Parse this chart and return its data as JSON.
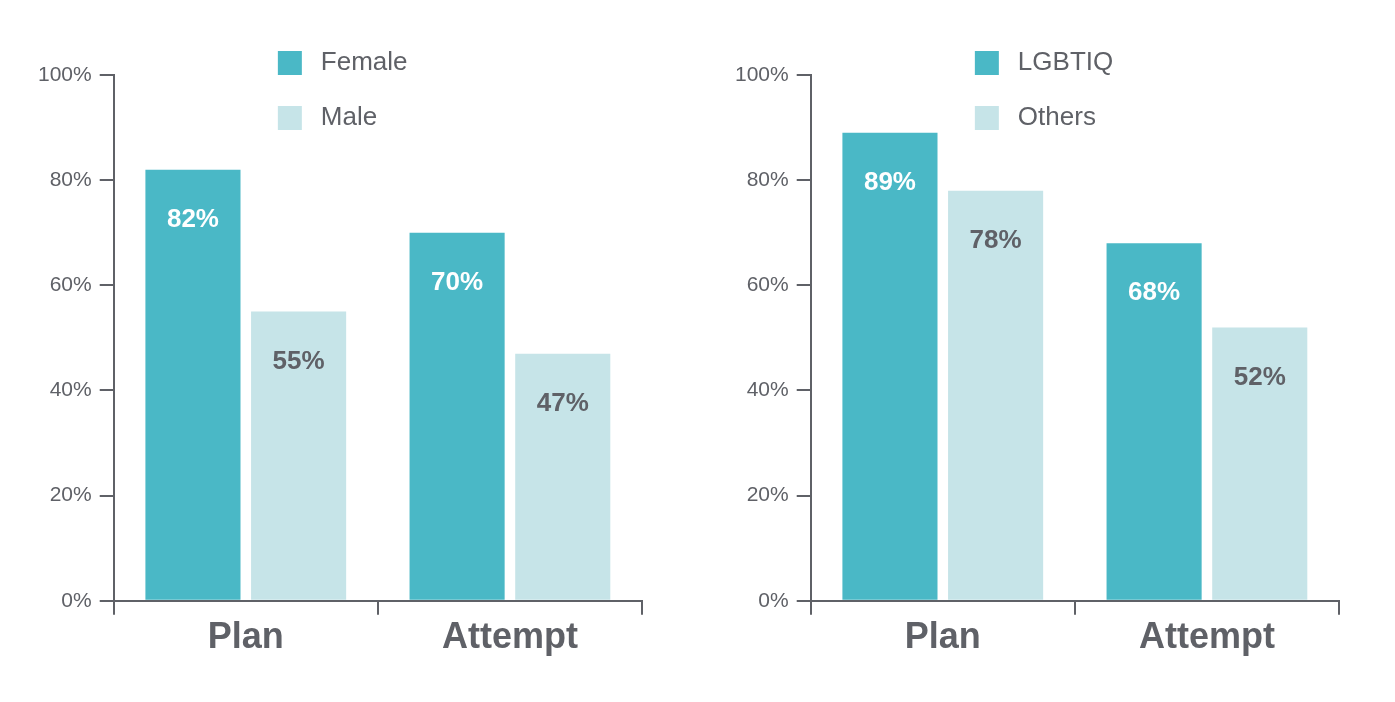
{
  "chart_data": [
    {
      "type": "bar",
      "categories": [
        "Plan",
        "Attempt"
      ],
      "series": [
        {
          "name": "Female",
          "color": "#4ab8c6",
          "values": [
            82,
            70
          ]
        },
        {
          "name": "Male",
          "color": "#c6e4e8",
          "values": [
            55,
            47
          ]
        }
      ],
      "ylim": [
        0,
        100
      ],
      "yticks": [
        {
          "value": 0,
          "label": "0%"
        },
        {
          "value": 20,
          "label": "20%"
        },
        {
          "value": 40,
          "label": "40%"
        },
        {
          "value": 60,
          "label": "60%"
        },
        {
          "value": 80,
          "label": "80%"
        },
        {
          "value": 100,
          "label": "100%"
        }
      ],
      "value_labels": [
        [
          "82%",
          "70%"
        ],
        [
          "55%",
          "47%"
        ]
      ],
      "legend": "top",
      "grid": false
    },
    {
      "type": "bar",
      "categories": [
        "Plan",
        "Attempt"
      ],
      "series": [
        {
          "name": "LGBTIQ",
          "color": "#4ab8c6",
          "values": [
            89,
            68
          ]
        },
        {
          "name": "Others",
          "color": "#c6e4e8",
          "values": [
            78,
            52
          ]
        }
      ],
      "ylim": [
        0,
        100
      ],
      "yticks": [
        {
          "value": 0,
          "label": "0%"
        },
        {
          "value": 20,
          "label": "20%"
        },
        {
          "value": 40,
          "label": "40%"
        },
        {
          "value": 60,
          "label": "60%"
        },
        {
          "value": 80,
          "label": "80%"
        },
        {
          "value": 100,
          "label": "100%"
        }
      ],
      "value_labels": [
        [
          "89%",
          "68%"
        ],
        [
          "78%",
          "52%"
        ]
      ],
      "legend": "top",
      "grid": false
    }
  ]
}
